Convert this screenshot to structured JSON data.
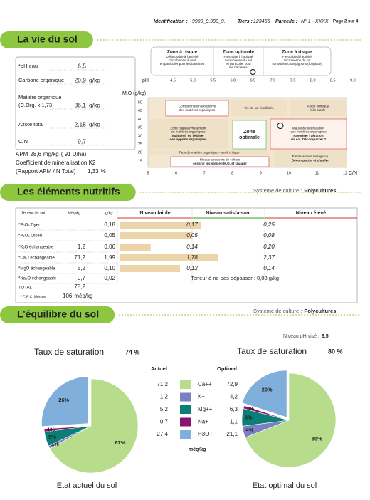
{
  "header": {
    "identification_label": "Identification :",
    "identification": "9999_9.999_9.",
    "tiers_label": "Tiers :",
    "tiers": "123456",
    "parcelle_label": "Parcelle :",
    "parcelle": "N° 1 - XXXX",
    "page": "Page 2 sur 4"
  },
  "vie_du_sol": {
    "title": "La vie du sol",
    "measures": [
      {
        "label": "*pH eau",
        "value": "6,5"
      },
      {
        "label": "Carbone organique",
        "value": "20,9",
        "unit": "g/kg"
      },
      {
        "label": "Matière organique",
        "sublabel": "(C.Org. x 1,73)",
        "value": "36,1",
        "unit": "g/kg"
      },
      {
        "label": "Azote total",
        "value": "2,15",
        "unit": "g/kg"
      },
      {
        "label": "C/N",
        "value": "9,7"
      }
    ],
    "apm": {
      "label": "APM",
      "value": "28,6",
      "unit": "mg/kg",
      "extra": "( 91 U/ha)"
    },
    "k2": {
      "label": "Coefficient de minéralisation K2",
      "sublabel": "(Rapport APM / N Total)",
      "value": "1,33",
      "unit": "%"
    },
    "ph_scale": {
      "label": "pH",
      "ticks": [
        "4.5",
        "5.0",
        "5.5",
        "6.0",
        "6.5",
        "7.0",
        "7.5",
        "8.0",
        "8.5",
        "9.0"
      ],
      "zones": [
        {
          "title": "Zone à risque",
          "lines": [
            "Défavorable à l'activité",
            "microbienne du sol",
            "en particulier pour les bactéries"
          ]
        },
        {
          "title": "Zone optimale",
          "lines": [
            "Favorable à l'activité",
            "microbienne du sol",
            "en particulier pour",
            "les bactéries"
          ]
        },
        {
          "title": "Zone à risque",
          "lines": [
            "Favorable à l'activité",
            "microbienne du sol",
            "surtout les champignons (fongique)"
          ]
        }
      ]
    },
    "mo_chart": {
      "y_label": "M.O (g/kg)",
      "x_label": "C/N",
      "yticks": [
        50,
        45,
        40,
        35,
        30,
        25,
        20,
        15
      ],
      "xticks": [
        5,
        6,
        7,
        8,
        9,
        10,
        11,
        12
      ],
      "zones": [
        {
          "lines": [
            "Consommation excessive",
            "des matières organiques"
          ]
        },
        {
          "lines": [
            "Vie du sol équilibrée"
          ]
        },
        {
          "lines": [
            "Acide humique",
            "très stable"
          ]
        },
        {
          "lines": [
            "Zone d'appauvrissement",
            "en matières organiques"
          ],
          "bold": [
            "Maintenir ou réaliser",
            "des apports organiques"
          ]
        },
        {
          "bold": [
            "Zone",
            "optimale"
          ]
        },
        {
          "lines": [
            "Mauvaise dégradation",
            "des matières organiques"
          ],
          "bold": [
            "Favoriser l'aération",
            "du sol. Décompacter ?"
          ]
        },
        {
          "lines": [
            "Taux de matière organique = seuil critique"
          ]
        },
        {
          "lines": [
            "Risque accidents de culture"
          ],
          "bold": [
            "enrichir les sols en M.O. et chauler"
          ]
        },
        {
          "lines": [
            "Faible activité biologique"
          ],
          "bold": [
            "Décompacter et chauler"
          ]
        }
      ]
    }
  },
  "nutriments": {
    "title": "Les éléments nutritifs",
    "culture_label": "Système de culture :",
    "culture": "Polycultures",
    "headers": [
      "Teneur du sol",
      "Méq/kg",
      "g/kg",
      "Niveau faible",
      "Niveau satisfaisant",
      "Niveau élevé"
    ],
    "rows": [
      {
        "name": "*P₂O₅ Dyer",
        "gkg": "0,18",
        "low": "0,17",
        "high": "0,25"
      },
      {
        "name": "*P₂O₅ Olsen",
        "gkg": "0,05",
        "low": "0,05",
        "high": "0,08"
      },
      {
        "name": "*K₂O échangeable",
        "meq": "1,2",
        "gkg": "0,06",
        "low": "0,14",
        "high": "0,20"
      },
      {
        "name": "*CaO échangeable",
        "meq": "71,2",
        "gkg": "1,99",
        "low": "1,78",
        "high": "2,37"
      },
      {
        "name": "*MgO échangeable",
        "meq": "5,2",
        "gkg": "0,10",
        "low": "0,12",
        "high": "0,14"
      }
    ],
    "na_row": {
      "name": "*Na₂O échangeable",
      "meq": "0,7",
      "gkg": "0,02",
      "note": "Teneur à ne pas dépasser : 0,08 g/kg"
    },
    "total": {
      "label": "TOTAL",
      "meq": "78,2"
    },
    "cec": {
      "label": "*C.E.C. Metson",
      "value": "106",
      "unit": "méq/kg"
    }
  },
  "equilibre": {
    "title": "L’équilibre du sol",
    "culture_label": "Système de culture :",
    "culture": "Polycultures",
    "ph_target_label": "Niveau pH visé :",
    "ph_target": "6,5",
    "legend_actuel": "Actuel",
    "legend_optimal": "Optimal",
    "unit": "méq/kg",
    "ions": [
      "Ca++",
      "K+",
      "Mg++",
      "Na+",
      "H3O+"
    ],
    "colors": [
      "#b7dc8c",
      "#7b7fc4",
      "#0b7f76",
      "#8c1170",
      "#80afdc"
    ],
    "actuel": {
      "saturation_label": "Taux de saturation",
      "saturation": "74 %",
      "caption": "Etat actuel du sol",
      "meq": [
        "71,2",
        "1,2",
        "5,2",
        "0,7",
        "27,4"
      ],
      "values": [
        67,
        1,
        5,
        1,
        26
      ],
      "value_labels": [
        "67%",
        "1%",
        "5%",
        "1%",
        "26%"
      ]
    },
    "optimal": {
      "saturation_label": "Taux de saturation",
      "saturation": "80 %",
      "caption": "Etat optimal du sol",
      "meq": [
        "72,9",
        "4,2",
        "6,3",
        "1,1",
        "21,1"
      ],
      "values": [
        69,
        4,
        6,
        1,
        20
      ],
      "value_labels": [
        "69%",
        "4%",
        "6%",
        "1%",
        "20%"
      ]
    }
  }
}
